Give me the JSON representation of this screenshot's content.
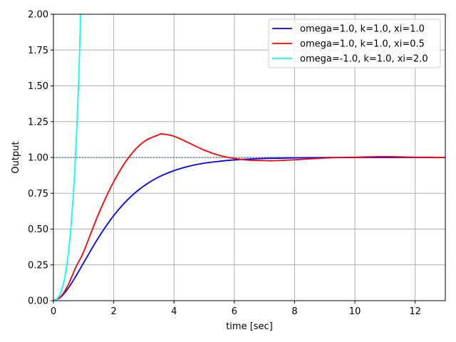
{
  "chart_data": {
    "type": "line",
    "title": "",
    "xlabel": "time [sec]",
    "ylabel": "Output",
    "xlim": [
      0,
      13
    ],
    "ylim": [
      0,
      2.0
    ],
    "xticks": [
      0,
      2,
      4,
      6,
      8,
      10,
      12
    ],
    "xtick_labels": [
      "0",
      "2",
      "4",
      "6",
      "8",
      "10",
      "12"
    ],
    "yticks": [
      0,
      0.25,
      0.5,
      0.75,
      1.0,
      1.25,
      1.5,
      1.75,
      2.0
    ],
    "ytick_labels": [
      "0.00",
      "0.25",
      "0.50",
      "0.75",
      "1.00",
      "1.25",
      "1.50",
      "1.75",
      "2.00"
    ],
    "grid": true,
    "legend_position": "top-right",
    "reference_line": {
      "y": 1.0,
      "style": "dotted",
      "color": "#1f77b4"
    },
    "series": [
      {
        "name": "omega=1.0, k=1.0, xi=1.0",
        "color": "#0000ff",
        "x": [
          0,
          0.25,
          0.5,
          0.75,
          1,
          1.5,
          2,
          2.5,
          3,
          3.5,
          4,
          4.5,
          5,
          5.5,
          6,
          7,
          8,
          9,
          10,
          11,
          12,
          13
        ],
        "y": [
          0,
          0.026,
          0.09,
          0.173,
          0.264,
          0.442,
          0.594,
          0.713,
          0.801,
          0.864,
          0.908,
          0.939,
          0.96,
          0.973,
          0.983,
          0.993,
          0.997,
          0.999,
          1.0,
          1.0,
          1.0,
          1.0
        ]
      },
      {
        "name": "omega=1.0, k=1.0, xi=0.5",
        "color": "#ff0000",
        "x": [
          0,
          0.25,
          0.5,
          0.75,
          1,
          1.5,
          2,
          2.5,
          3,
          3.5,
          3.63,
          4,
          4.5,
          5,
          5.5,
          6,
          6.5,
          7,
          7.25,
          7.5,
          8,
          8.5,
          9,
          9.5,
          10,
          10.5,
          10.9,
          11.5,
          12,
          13
        ],
        "y": [
          0,
          0.03,
          0.115,
          0.237,
          0.34,
          0.607,
          0.831,
          1.001,
          1.11,
          1.159,
          1.163,
          1.148,
          1.101,
          1.051,
          1.015,
          0.993,
          0.981,
          0.978,
          0.977,
          0.979,
          0.984,
          0.99,
          0.996,
          1.0,
          1.002,
          1.004,
          1.006,
          1.004,
          1.002,
          1.0
        ]
      },
      {
        "name": "omega=-1.0, k=1.0, xi=2.0",
        "color": "#00ffff",
        "x": [
          0,
          0.1,
          0.2,
          0.3,
          0.4,
          0.5,
          0.6,
          0.7,
          0.8,
          0.85,
          0.9
        ],
        "y": [
          0,
          0.009,
          0.037,
          0.094,
          0.191,
          0.342,
          0.565,
          0.883,
          1.33,
          1.62,
          2.0
        ]
      }
    ]
  }
}
